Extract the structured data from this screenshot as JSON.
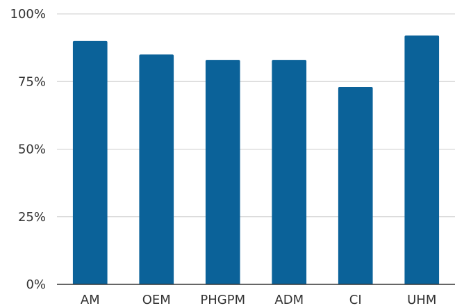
{
  "chart_data": {
    "type": "bar",
    "title": "",
    "xlabel": "",
    "ylabel": "",
    "categories": [
      "AM",
      "OEM",
      "PHGPM",
      "ADM",
      "CI",
      "UHM"
    ],
    "values": [
      90,
      85,
      83,
      83,
      73,
      92
    ],
    "ylim": [
      0,
      100
    ],
    "yticks": [
      0,
      25,
      50,
      75,
      100
    ],
    "ytick_labels": [
      "0%",
      "25%",
      "50%",
      "75%",
      "100%"
    ],
    "grid": true,
    "legend": "none",
    "bar_color": "#0b6299"
  }
}
